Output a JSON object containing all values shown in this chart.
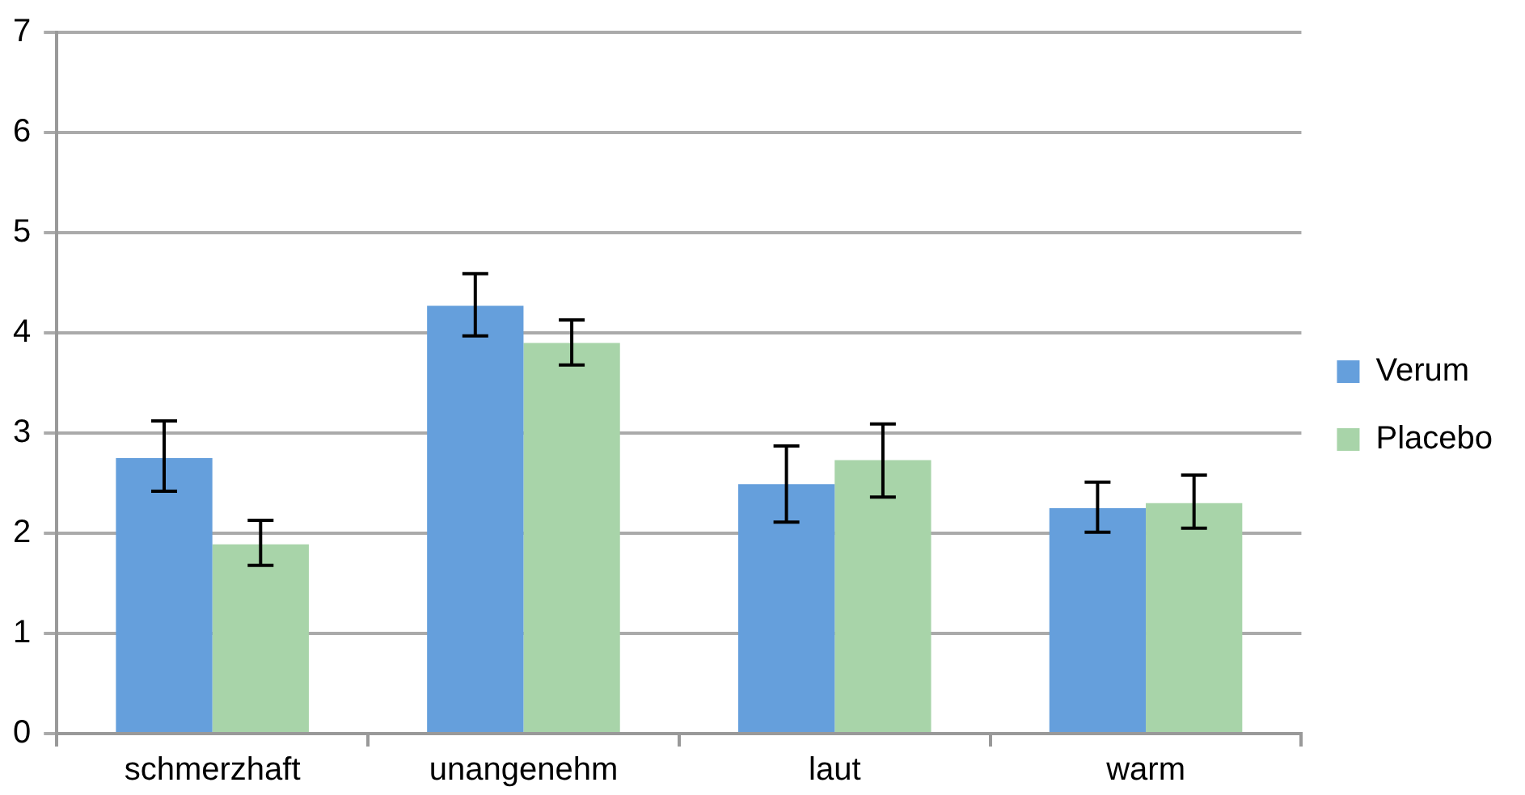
{
  "chart_data": {
    "type": "bar",
    "categories": [
      "schmerzhaft",
      "unangenehm",
      "laut",
      "warm"
    ],
    "series": [
      {
        "name": "Verum",
        "color": "#659fdc",
        "values": [
          2.75,
          4.27,
          2.49,
          2.25
        ],
        "errors": [
          [
            2.42,
            3.12
          ],
          [
            3.97,
            4.59
          ],
          [
            2.11,
            2.87
          ],
          [
            2.01,
            2.51
          ]
        ]
      },
      {
        "name": "Placebo",
        "color": "#a8d4a9",
        "values": [
          1.89,
          3.9,
          2.73,
          2.3
        ],
        "errors": [
          [
            1.68,
            2.13
          ],
          [
            3.68,
            4.13
          ],
          [
            2.36,
            3.09
          ],
          [
            2.05,
            2.58
          ]
        ]
      }
    ],
    "ylim": [
      0,
      7
    ],
    "yticks": [
      0,
      1,
      2,
      3,
      4,
      5,
      6,
      7
    ],
    "grid": "y",
    "legend": "right"
  }
}
